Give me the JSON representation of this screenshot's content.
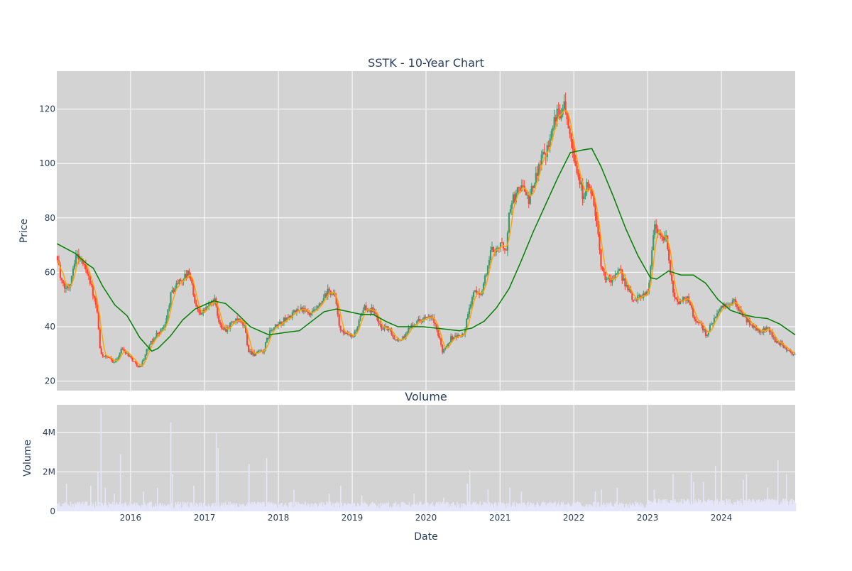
{
  "chart_data": [
    {
      "type": "candlestick",
      "title": "SSTK - 10-Year Chart",
      "ylabel": "Price",
      "ylim": [
        16.5,
        134
      ],
      "yticks": [
        20,
        40,
        60,
        80,
        100,
        120
      ],
      "xlim": [
        "2015-01-01",
        "2024-12-31"
      ],
      "xticks": [
        "2016",
        "2017",
        "2018",
        "2019",
        "2020",
        "2021",
        "2022",
        "2023",
        "2024"
      ],
      "grid": true,
      "background": "#d3d3d3",
      "colors": {
        "up": "#3d9970",
        "down": "#ff4136",
        "ma_short": "#ffa500",
        "ma_long": "#008000"
      },
      "price_keypoints": [
        [
          "2015-01-02",
          66
        ],
        [
          "2015-01-15",
          58
        ],
        [
          "2015-02-01",
          54
        ],
        [
          "2015-03-01",
          55
        ],
        [
          "2015-04-01",
          67
        ],
        [
          "2015-05-01",
          64
        ],
        [
          "2015-06-01",
          60
        ],
        [
          "2015-07-01",
          50
        ],
        [
          "2015-07-15",
          46
        ],
        [
          "2015-08-01",
          30
        ],
        [
          "2015-09-15",
          28
        ],
        [
          "2015-10-15",
          27
        ],
        [
          "2015-11-15",
          32
        ],
        [
          "2015-12-15",
          30
        ],
        [
          "2016-01-15",
          27
        ],
        [
          "2016-02-15",
          25
        ],
        [
          "2016-03-15",
          31
        ],
        [
          "2016-05-01",
          37
        ],
        [
          "2016-06-15",
          40
        ],
        [
          "2016-07-15",
          52
        ],
        [
          "2016-08-15",
          56
        ],
        [
          "2016-09-15",
          58
        ],
        [
          "2016-10-15",
          60
        ],
        [
          "2016-11-15",
          47
        ],
        [
          "2016-12-15",
          45
        ],
        [
          "2017-01-15",
          48
        ],
        [
          "2017-02-15",
          50
        ],
        [
          "2017-03-10",
          41
        ],
        [
          "2017-04-15",
          39
        ],
        [
          "2017-05-15",
          42
        ],
        [
          "2017-06-15",
          42
        ],
        [
          "2017-07-15",
          40
        ],
        [
          "2017-08-01",
          31
        ],
        [
          "2017-09-01",
          30
        ],
        [
          "2017-10-15",
          31
        ],
        [
          "2017-11-15",
          38
        ],
        [
          "2017-12-31",
          41
        ],
        [
          "2018-03-01",
          44
        ],
        [
          "2018-04-15",
          47
        ],
        [
          "2018-06-01",
          44
        ],
        [
          "2018-07-15",
          47
        ],
        [
          "2018-09-01",
          53
        ],
        [
          "2018-10-01",
          52
        ],
        [
          "2018-11-01",
          38
        ],
        [
          "2018-12-31",
          36
        ],
        [
          "2019-02-01",
          42
        ],
        [
          "2019-03-01",
          47
        ],
        [
          "2019-04-15",
          46
        ],
        [
          "2019-05-15",
          40
        ],
        [
          "2019-07-01",
          39
        ],
        [
          "2019-08-01",
          35
        ],
        [
          "2019-09-15",
          36
        ],
        [
          "2019-10-15",
          41
        ],
        [
          "2019-12-15",
          43
        ],
        [
          "2020-01-31",
          43
        ],
        [
          "2020-03-01",
          36
        ],
        [
          "2020-03-20",
          31
        ],
        [
          "2020-05-01",
          36
        ],
        [
          "2020-07-01",
          37
        ],
        [
          "2020-08-15",
          52
        ],
        [
          "2020-10-01",
          53
        ],
        [
          "2020-11-15",
          68
        ],
        [
          "2020-12-31",
          70
        ],
        [
          "2021-01-31",
          69
        ],
        [
          "2021-02-15",
          85
        ],
        [
          "2021-03-15",
          88
        ],
        [
          "2021-04-15",
          93
        ],
        [
          "2021-05-15",
          86
        ],
        [
          "2021-06-15",
          92
        ],
        [
          "2021-07-15",
          102
        ],
        [
          "2021-08-15",
          105
        ],
        [
          "2021-09-15",
          115
        ],
        [
          "2021-10-15",
          118
        ],
        [
          "2021-11-10",
          123
        ],
        [
          "2021-12-10",
          113
        ],
        [
          "2022-01-10",
          98
        ],
        [
          "2022-02-10",
          89
        ],
        [
          "2022-03-10",
          92
        ],
        [
          "2022-04-15",
          82
        ],
        [
          "2022-05-10",
          63
        ],
        [
          "2022-06-10",
          57
        ],
        [
          "2022-07-15",
          58
        ],
        [
          "2022-08-15",
          60
        ],
        [
          "2022-09-15",
          55
        ],
        [
          "2022-10-15",
          50
        ],
        [
          "2022-11-15",
          51
        ],
        [
          "2022-12-31",
          53
        ],
        [
          "2023-02-01",
          78
        ],
        [
          "2023-03-01",
          73
        ],
        [
          "2023-04-01",
          72
        ],
        [
          "2023-05-01",
          53
        ],
        [
          "2023-06-01",
          49
        ],
        [
          "2023-07-15",
          51
        ],
        [
          "2023-08-15",
          43
        ],
        [
          "2023-09-15",
          41
        ],
        [
          "2023-10-15",
          37
        ],
        [
          "2023-11-15",
          42
        ],
        [
          "2023-12-31",
          47
        ],
        [
          "2024-02-01",
          48
        ],
        [
          "2024-03-01",
          49
        ],
        [
          "2024-04-15",
          44
        ],
        [
          "2024-06-01",
          40
        ],
        [
          "2024-07-15",
          38
        ],
        [
          "2024-08-15",
          40
        ],
        [
          "2024-09-15",
          35
        ],
        [
          "2024-10-15",
          34
        ],
        [
          "2024-11-15",
          31
        ],
        [
          "2024-12-31",
          30
        ]
      ],
      "ma_long_keypoints": [
        [
          "2015-01-02",
          70.5
        ],
        [
          "2015-04-01",
          67
        ],
        [
          "2015-06-01",
          63
        ],
        [
          "2015-07-01",
          61.5
        ],
        [
          "2015-08-15",
          55
        ],
        [
          "2015-10-15",
          48
        ],
        [
          "2015-12-15",
          44
        ],
        [
          "2016-02-15",
          36
        ],
        [
          "2016-04-15",
          31
        ],
        [
          "2016-05-15",
          32
        ],
        [
          "2016-07-15",
          36.5
        ],
        [
          "2016-09-15",
          42.5
        ],
        [
          "2016-11-15",
          46.5
        ],
        [
          "2017-01-15",
          48.5
        ],
        [
          "2017-02-15",
          49.5
        ],
        [
          "2017-04-15",
          48.5
        ],
        [
          "2017-06-15",
          44.5
        ],
        [
          "2017-08-15",
          40
        ],
        [
          "2017-10-15",
          38
        ],
        [
          "2017-11-15",
          37
        ],
        [
          "2018-02-15",
          38
        ],
        [
          "2018-04-15",
          38.5
        ],
        [
          "2018-06-15",
          42
        ],
        [
          "2018-08-15",
          45.5
        ],
        [
          "2018-10-15",
          46.5
        ],
        [
          "2018-12-15",
          45.5
        ],
        [
          "2019-02-15",
          44.5
        ],
        [
          "2019-04-15",
          44.5
        ],
        [
          "2019-06-15",
          42
        ],
        [
          "2019-08-15",
          40
        ],
        [
          "2019-12-15",
          40
        ],
        [
          "2020-02-15",
          39.5
        ],
        [
          "2020-04-15",
          39
        ],
        [
          "2020-06-15",
          38.5
        ],
        [
          "2020-08-15",
          39.5
        ],
        [
          "2020-10-15",
          42
        ],
        [
          "2020-12-15",
          47
        ],
        [
          "2021-02-15",
          54
        ],
        [
          "2021-04-15",
          64
        ],
        [
          "2021-06-15",
          75
        ],
        [
          "2021-08-15",
          85
        ],
        [
          "2021-10-15",
          95
        ],
        [
          "2021-12-15",
          104
        ],
        [
          "2022-02-15",
          105
        ],
        [
          "2022-03-31",
          105.5
        ],
        [
          "2022-05-15",
          99
        ],
        [
          "2022-07-15",
          88
        ],
        [
          "2022-09-15",
          76
        ],
        [
          "2022-11-15",
          66
        ],
        [
          "2023-01-15",
          58
        ],
        [
          "2023-02-15",
          57.5
        ],
        [
          "2023-04-15",
          60.5
        ],
        [
          "2023-06-15",
          59
        ],
        [
          "2023-08-15",
          59
        ],
        [
          "2023-10-15",
          56
        ],
        [
          "2023-12-15",
          50
        ],
        [
          "2024-02-15",
          46
        ],
        [
          "2024-04-15",
          44.5
        ],
        [
          "2024-06-15",
          43.5
        ],
        [
          "2024-08-15",
          43
        ],
        [
          "2024-10-15",
          41
        ],
        [
          "2024-12-31",
          37
        ]
      ]
    },
    {
      "type": "bar",
      "title": "Volume",
      "xlabel": "Date",
      "ylabel": "Volume",
      "ylim": [
        0,
        5.4
      ],
      "yticks": [
        0,
        2,
        4
      ],
      "ytick_labels": [
        "0",
        "2M",
        "4M"
      ],
      "value_unit": "millions",
      "grid": true,
      "background": "#d3d3d3",
      "bar_color": "#e6e6fa",
      "volume_spikes": [
        [
          "2015-02-15",
          1.4
        ],
        [
          "2015-06-15",
          1.3
        ],
        [
          "2015-07-20",
          2.0
        ],
        [
          "2015-08-05",
          5.2
        ],
        [
          "2015-08-25",
          1.2
        ],
        [
          "2015-10-10",
          0.9
        ],
        [
          "2015-11-10",
          2.9
        ],
        [
          "2016-03-01",
          1.0
        ],
        [
          "2016-05-10",
          1.2
        ],
        [
          "2016-07-15",
          4.5
        ],
        [
          "2016-07-25",
          1.9
        ],
        [
          "2016-11-05",
          1.3
        ],
        [
          "2017-02-25",
          4.0
        ],
        [
          "2017-03-05",
          3.2
        ],
        [
          "2017-08-05",
          2.4
        ],
        [
          "2017-11-01",
          2.7
        ],
        [
          "2018-03-15",
          1.1
        ],
        [
          "2018-09-05",
          0.9
        ],
        [
          "2018-11-01",
          1.3
        ],
        [
          "2019-02-15",
          0.8
        ],
        [
          "2019-11-01",
          0.9
        ],
        [
          "2020-03-25",
          0.7
        ],
        [
          "2020-08-01",
          2.1
        ],
        [
          "2020-07-20",
          1.4
        ],
        [
          "2020-11-01",
          1.1
        ],
        [
          "2021-02-15",
          1.2
        ],
        [
          "2021-04-15",
          1.0
        ],
        [
          "2022-04-15",
          1.0
        ],
        [
          "2022-05-15",
          1.1
        ],
        [
          "2022-08-01",
          1.2
        ],
        [
          "2023-02-01",
          1.1
        ],
        [
          "2023-05-05",
          1.9
        ],
        [
          "2023-08-01",
          2.0
        ],
        [
          "2023-08-15",
          1.5
        ],
        [
          "2023-10-01",
          1.5
        ],
        [
          "2023-12-01",
          2.3
        ],
        [
          "2024-04-15",
          1.6
        ],
        [
          "2024-05-01",
          1.9
        ],
        [
          "2024-08-15",
          1.2
        ],
        [
          "2024-10-05",
          2.6
        ],
        [
          "2024-11-15",
          1.9
        ]
      ]
    }
  ]
}
